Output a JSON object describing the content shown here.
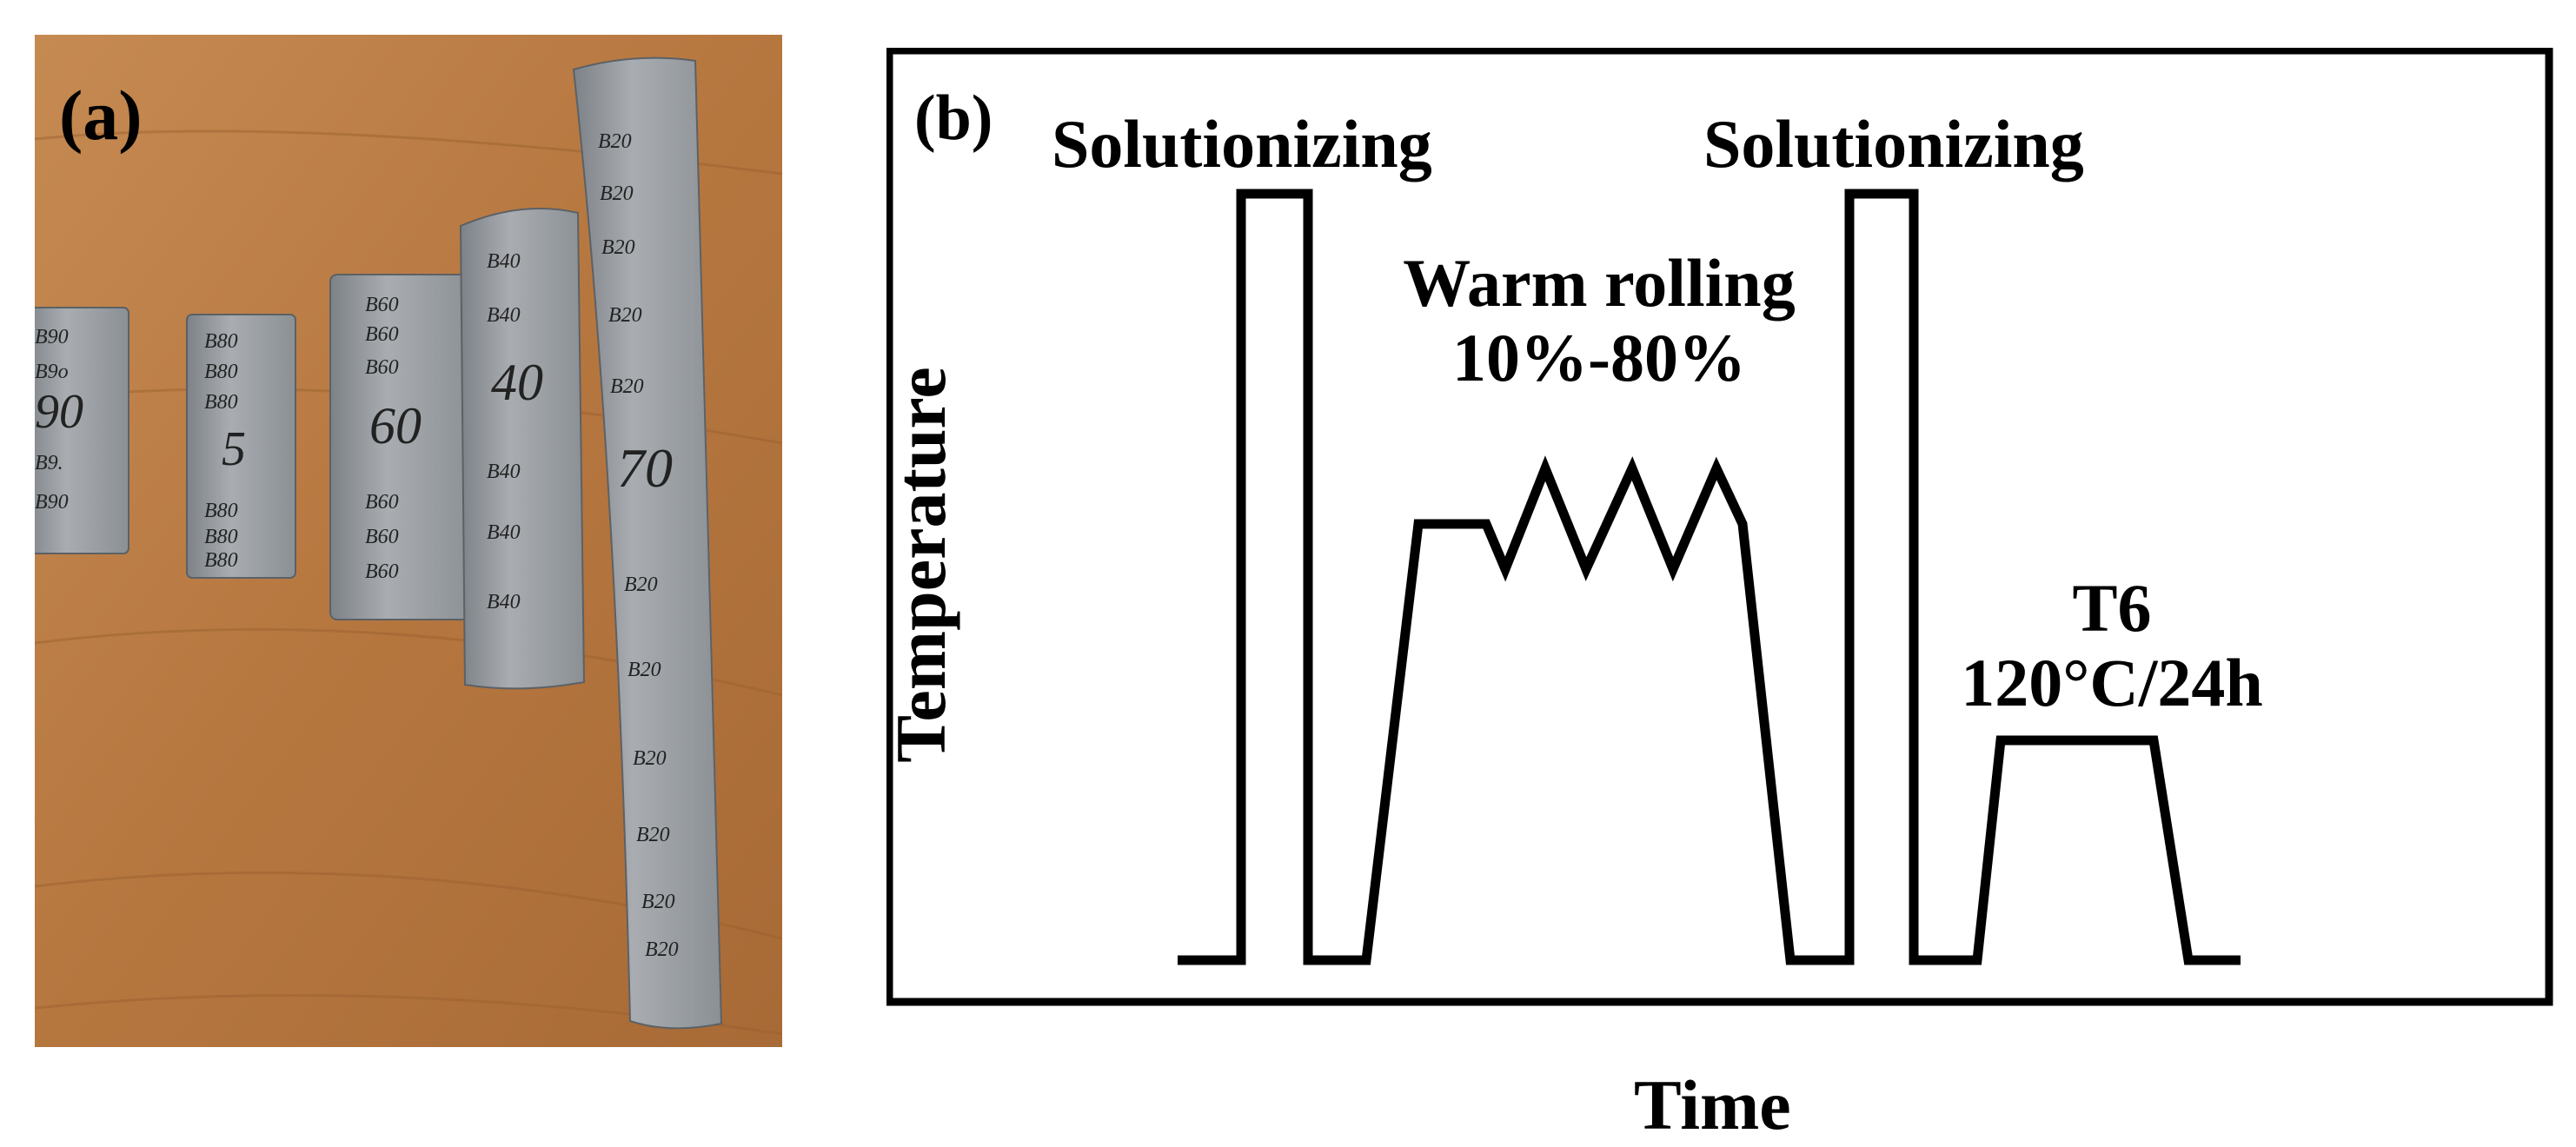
{
  "panel_a": {
    "label": "(a)",
    "strips": [
      {
        "marks": [
          "B90",
          "B9o",
          "90",
          "B9.",
          "B90"
        ]
      },
      {
        "marks": [
          "B80",
          "B80",
          "B80",
          "5",
          "B80",
          "B80",
          "B80"
        ]
      },
      {
        "marks": [
          "B60",
          "B60",
          "B60",
          "60",
          "B60",
          "B60",
          "B60"
        ]
      },
      {
        "marks": [
          "B40",
          "B40",
          "40",
          "B40",
          "B40",
          "B40"
        ]
      },
      {
        "marks": [
          "B20",
          "B20",
          "B20",
          "B20",
          "B20",
          "70",
          "B20",
          "B20",
          "B20",
          "B20",
          "B20",
          "B20"
        ]
      }
    ]
  },
  "panel_b": {
    "label": "(b)",
    "x_label": "Time",
    "y_label": "Temperature",
    "annotations": {
      "solutionizing_1": "Solutionizing",
      "solutionizing_2": "Solutionizing",
      "warm_rolling": "Warm rolling",
      "warm_rolling_range": "10%-80%",
      "t6": "T6",
      "t6_condition": "120°C/24h"
    }
  }
}
